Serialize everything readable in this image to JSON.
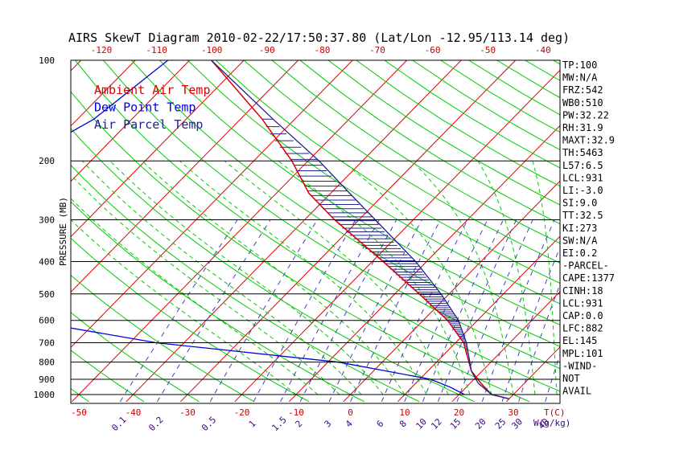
{
  "title": "AIRS SkewT Diagram 2010-02-22/17:50:37.80 (Lat/Lon -12.95/113.14 deg)",
  "legend": [
    {
      "label": "Ambient Air Temp",
      "color": "#dd0000"
    },
    {
      "label": "Dew Point Temp",
      "color": "#0000dd"
    },
    {
      "label": "Air Parcel Temp",
      "color": "#202090"
    }
  ],
  "colors": {
    "ambient": "#dd0000",
    "dewpoint": "#0000dd",
    "parcel": "#202090",
    "isotherm": "#dd0000",
    "dry_adiabat": "#00cc00",
    "moist_adiabat": "#00cc00",
    "mixing_ratio": "#4040c0",
    "isobar": "#000000",
    "axis_text": "#cc0000",
    "mixing_text": "#400080"
  },
  "chart_data": {
    "type": "line",
    "title": "AIRS SkewT Diagram 2010-02-22/17:50:37.80 (Lat/Lon -12.95/113.14 deg)",
    "ylabel": "PRESSURE (MB)",
    "xlabel": "T(C)",
    "mixing_label": "W(g/kg)",
    "y_scale": "log",
    "y_range": [
      1050,
      100
    ],
    "pressure_ticks": [
      100,
      200,
      300,
      400,
      500,
      600,
      700,
      800,
      900,
      1000
    ],
    "temp_ticks_bottom": [
      -50,
      -40,
      -30,
      -20,
      -10,
      0,
      10,
      20,
      30
    ],
    "temp_ticks_top": [
      -120,
      -110,
      -100,
      -90,
      -80,
      -70,
      -60,
      -50,
      -40
    ],
    "mixing_ratio_ticks": [
      "0.1",
      "0.2",
      "0.5",
      "1",
      "1.5",
      "2",
      "3",
      "4",
      "6",
      "8",
      "10",
      "12",
      "15",
      "20",
      "25",
      "30",
      "40"
    ],
    "series": [
      {
        "name": "Ambient Air Temp",
        "pressure": [
          100,
          150,
          200,
          250,
          300,
          400,
          500,
          600,
          700,
          850,
          925,
          1000,
          1030
        ],
        "temperature": [
          -86,
          -66,
          -53,
          -44,
          -34.5,
          -18,
          -5.5,
          4.5,
          11.5,
          18,
          22,
          26,
          30
        ]
      },
      {
        "name": "Dew Point Temp",
        "pressure": [
          100,
          150,
          200,
          250,
          300,
          400,
          500,
          550,
          600,
          700,
          800,
          900,
          950,
          1000
        ],
        "temperature": [
          -94,
          -97,
          -103,
          -112,
          -107,
          -93,
          -78,
          -74,
          -73,
          -45,
          -8,
          12,
          17,
          21
        ]
      },
      {
        "name": "Air Parcel Temp",
        "pressure": [
          100,
          150,
          200,
          250,
          300,
          400,
          500,
          600,
          700,
          850,
          925,
          1000,
          1030
        ],
        "temperature": [
          -86,
          -64,
          -48,
          -36.5,
          -27,
          -12,
          -1.5,
          6.5,
          12,
          18,
          21.5,
          26,
          30
        ]
      }
    ]
  },
  "stats": [
    "TP:100",
    "MW:N/A",
    "FRZ:542",
    "WB0:510",
    "PW:32.22",
    "RH:31.9",
    "MAXT:32.9",
    "TH:5463",
    "L57:6.5",
    "LCL:931",
    "LI:-3.0",
    "SI:9.0",
    "TT:32.5",
    "KI:273",
    "SW:N/A",
    "EI:0.2",
    "-PARCEL-",
    "CAPE:1377",
    "CINH:18",
    "LCL:931",
    "CAP:0.0",
    "LFC:882",
    "EL:145",
    "MPL:101",
    "-WIND-",
    "NOT",
    "AVAIL"
  ]
}
